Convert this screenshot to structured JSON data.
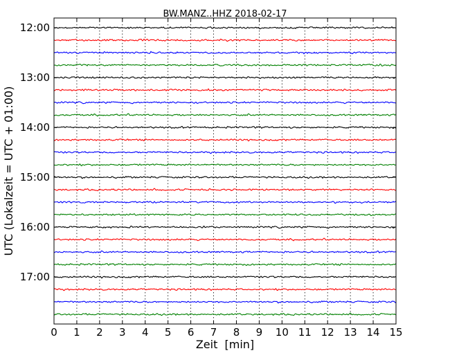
{
  "chart_data": {
    "type": "line",
    "subtype": "seismogram-dayplot",
    "title": "BW.MANZ..HHZ 2018-02-17",
    "xlabel": "Zeit  [min]",
    "ylabel": "UTC (Lokalzeit = UTC + 01:00)",
    "xlim": [
      0,
      15
    ],
    "x_ticks": [
      0,
      1,
      2,
      3,
      4,
      5,
      6,
      7,
      8,
      9,
      10,
      11,
      12,
      13,
      14,
      15
    ],
    "x_tick_labels": [
      "0",
      "1",
      "2",
      "3",
      "4",
      "5",
      "6",
      "7",
      "8",
      "9",
      "10",
      "11",
      "12",
      "13",
      "14",
      "15"
    ],
    "y_tick_labels": [
      "12:00",
      "13:00",
      "14:00",
      "15:00",
      "16:00",
      "17:00"
    ],
    "rows_per_hour": 4,
    "row_minutes": 15,
    "trace_colors": [
      "#000000",
      "#ff0000",
      "#0000ff",
      "#008000"
    ],
    "grid": "vertical dotted",
    "series": [
      {
        "start": "12:00",
        "color": "#000000"
      },
      {
        "start": "12:15",
        "color": "#ff0000"
      },
      {
        "start": "12:30",
        "color": "#0000ff"
      },
      {
        "start": "12:45",
        "color": "#008000"
      },
      {
        "start": "13:00",
        "color": "#000000"
      },
      {
        "start": "13:15",
        "color": "#ff0000"
      },
      {
        "start": "13:30",
        "color": "#0000ff"
      },
      {
        "start": "13:45",
        "color": "#008000"
      },
      {
        "start": "14:00",
        "color": "#000000"
      },
      {
        "start": "14:15",
        "color": "#ff0000"
      },
      {
        "start": "14:30",
        "color": "#0000ff"
      },
      {
        "start": "14:45",
        "color": "#008000"
      },
      {
        "start": "15:00",
        "color": "#000000"
      },
      {
        "start": "15:15",
        "color": "#ff0000"
      },
      {
        "start": "15:30",
        "color": "#0000ff"
      },
      {
        "start": "15:45",
        "color": "#008000"
      },
      {
        "start": "16:00",
        "color": "#000000"
      },
      {
        "start": "16:15",
        "color": "#ff0000"
      },
      {
        "start": "16:30",
        "color": "#0000ff"
      },
      {
        "start": "16:45",
        "color": "#008000"
      },
      {
        "start": "17:00",
        "color": "#000000"
      },
      {
        "start": "17:15",
        "color": "#ff0000"
      },
      {
        "start": "17:30",
        "color": "#0000ff"
      },
      {
        "start": "17:45",
        "color": "#008000"
      }
    ]
  }
}
